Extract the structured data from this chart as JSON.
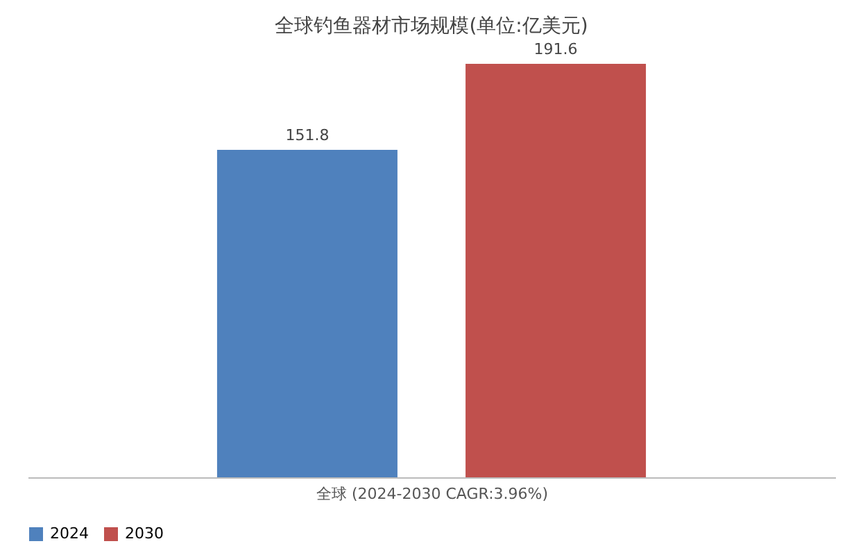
{
  "chart_data": {
    "type": "bar",
    "title": "全球钓鱼器材市场规模(单位:亿美元)",
    "xlabel": "全球 (2024-2030 CAGR:3.96%)",
    "categories": [
      null
    ],
    "series": [
      {
        "name": "2024",
        "color": "#4f81bd",
        "values": [
          151.8
        ]
      },
      {
        "name": "2030",
        "color": "#c0504d",
        "values": [
          191.6
        ]
      }
    ],
    "data_labels": true,
    "legend": "bottom",
    "grid": false
  }
}
